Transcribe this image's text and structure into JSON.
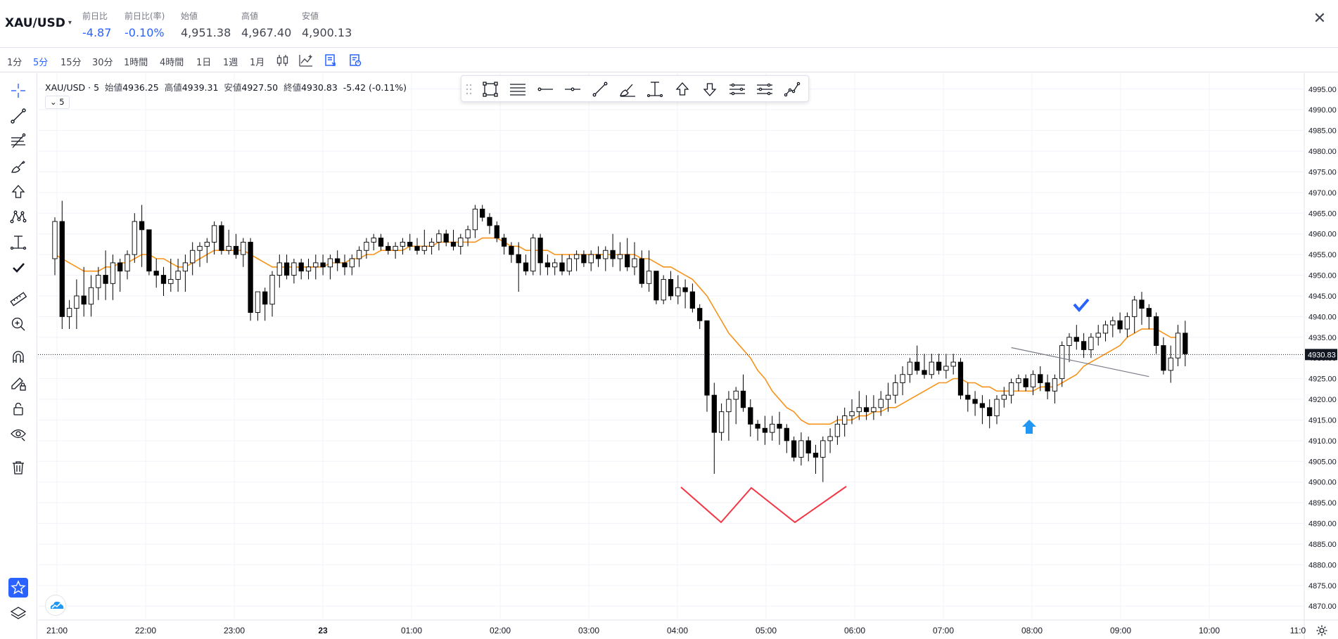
{
  "header": {
    "symbol": "XAU/USD",
    "stats": [
      {
        "label": "前日比",
        "value": "-4.87",
        "negative": true
      },
      {
        "label": "前日比(率)",
        "value": "-0.10%",
        "negative": true
      },
      {
        "label": "始値",
        "value": "4,951.38",
        "negative": false
      },
      {
        "label": "高値",
        "value": "4,967.40",
        "negative": false
      },
      {
        "label": "安値",
        "value": "4,900.13",
        "negative": false
      }
    ],
    "close_icon": "close-icon"
  },
  "timeframes": [
    "1分",
    "5分",
    "15分",
    "30分",
    "1時間",
    "4時間",
    "1日",
    "1週",
    "1月"
  ],
  "active_timeframe": "5分",
  "toolbar_icons": [
    "candle-type-icon",
    "indicators-icon",
    "template-icon",
    "snapshot-icon"
  ],
  "left_tools": [
    "crosshair-icon",
    "trendline-icon",
    "fib-icon",
    "brush-icon",
    "arrow-up-icon",
    "pattern-icon",
    "measure-text-icon",
    "check-icon",
    "ruler-icon",
    "zoom-in-icon",
    "magnet-icon",
    "lock-drawing-icon",
    "lock-icon",
    "eye-icon",
    "trash-icon",
    "star-icon",
    "layers-icon"
  ],
  "legend": {
    "symbol": "XAU/USD",
    "interval": "5",
    "open_label": "始値",
    "open": "4936.25",
    "high_label": "高値",
    "high": "4939.31",
    "low_label": "安値",
    "low": "4927.50",
    "close_label": "終値",
    "close": "4930.83",
    "change": "-5.42 (-0.11%)",
    "sub": "5"
  },
  "float_toolbar": [
    "rectangle-icon",
    "fib-lines-icon",
    "horizontal-ray-icon",
    "horizontal-line-icon",
    "trend-line-icon",
    "brush-icon",
    "price-range-icon",
    "arrow-up-icon",
    "arrow-down-icon",
    "parallel-channel-icon",
    "regression-icon",
    "path-icon"
  ],
  "chart_data": {
    "type": "candlestick",
    "symbol": "XAU/USD",
    "interval": "5",
    "y_ticks": [
      "4995.00",
      "4990.00",
      "4985.00",
      "4980.00",
      "4975.00",
      "4970.00",
      "4965.00",
      "4960.00",
      "4955.00",
      "4950.00",
      "4945.00",
      "4940.00",
      "4935.00",
      "4930.00",
      "4925.00",
      "4920.00",
      "4915.00",
      "4910.00",
      "4905.00",
      "4900.00",
      "4895.00",
      "4890.00",
      "4885.00",
      "4880.00",
      "4875.00",
      "4870.00"
    ],
    "ylim": [
      4868,
      4997
    ],
    "x_ticks": [
      "21:00",
      "22:00",
      "23:00",
      "23",
      "01:00",
      "02:00",
      "03:00",
      "04:00",
      "05:00",
      "06:00",
      "07:00",
      "08:00",
      "09:00",
      "10:00",
      "11:0"
    ],
    "current_price": "4930.83",
    "current_price_value": 4930.83,
    "up_color": "#ffffff",
    "down_color": "#000000",
    "ma_color": "#f7931a",
    "candles": [
      [
        4954,
        4964,
        4950,
        4963
      ],
      [
        4963,
        4968,
        4937,
        4940
      ],
      [
        4940,
        4944,
        4937,
        4942
      ],
      [
        4942,
        4949,
        4937,
        4945
      ],
      [
        4945,
        4952,
        4940,
        4943
      ],
      [
        4943,
        4950,
        4940,
        4947
      ],
      [
        4947,
        4952,
        4944,
        4950
      ],
      [
        4950,
        4956,
        4944,
        4948
      ],
      [
        4948,
        4955,
        4944,
        4953
      ],
      [
        4953,
        4954,
        4946,
        4951
      ],
      [
        4951,
        4956,
        4949,
        4955
      ],
      [
        4955,
        4965,
        4953,
        4963
      ],
      [
        4963,
        4967,
        4952,
        4961
      ],
      [
        4961,
        4961,
        4950,
        4951
      ],
      [
        4951,
        4954,
        4947,
        4950
      ],
      [
        4950,
        4952,
        4945,
        4948
      ],
      [
        4948,
        4954,
        4946,
        4949
      ],
      [
        4949,
        4954,
        4946,
        4951
      ],
      [
        4951,
        4955,
        4946,
        4953
      ],
      [
        4953,
        4958,
        4950,
        4956
      ],
      [
        4956,
        4958,
        4952,
        4957
      ],
      [
        4957,
        4959,
        4953,
        4958
      ],
      [
        4958,
        4963,
        4955,
        4962
      ],
      [
        4962,
        4963,
        4955,
        4956
      ],
      [
        4956,
        4961,
        4955,
        4957
      ],
      [
        4957,
        4960,
        4954,
        4955
      ],
      [
        4955,
        4959,
        4952,
        4958
      ],
      [
        4958,
        4959,
        4939,
        4941
      ],
      [
        4941,
        4946,
        4939,
        4946
      ],
      [
        4946,
        4947,
        4939,
        4943
      ],
      [
        4943,
        4951,
        4940,
        4950
      ],
      [
        4950,
        4955,
        4947,
        4953
      ],
      [
        4953,
        4955,
        4949,
        4950
      ],
      [
        4950,
        4954,
        4948,
        4953
      ],
      [
        4953,
        4954,
        4949,
        4951
      ],
      [
        4951,
        4954,
        4949,
        4952
      ],
      [
        4952,
        4955,
        4949,
        4953
      ],
      [
        4953,
        4955,
        4950,
        4952
      ],
      [
        4952,
        4955,
        4949,
        4954
      ],
      [
        4954,
        4956,
        4951,
        4953
      ],
      [
        4953,
        4955,
        4950,
        4952
      ],
      [
        4952,
        4955,
        4950,
        4954
      ],
      [
        4954,
        4957,
        4952,
        4956
      ],
      [
        4956,
        4959,
        4954,
        4958
      ],
      [
        4958,
        4960,
        4956,
        4959
      ],
      [
        4959,
        4960,
        4956,
        4957
      ],
      [
        4957,
        4958,
        4955,
        4956
      ],
      [
        4956,
        4958,
        4954,
        4957
      ],
      [
        4957,
        4959,
        4955,
        4958
      ],
      [
        4958,
        4960,
        4956,
        4957
      ],
      [
        4957,
        4959,
        4955,
        4956
      ],
      [
        4956,
        4961,
        4955,
        4957
      ],
      [
        4957,
        4959,
        4955,
        4958
      ],
      [
        4958,
        4961,
        4956,
        4960
      ],
      [
        4960,
        4961,
        4957,
        4958
      ],
      [
        4958,
        4961,
        4956,
        4957
      ],
      [
        4957,
        4960,
        4955,
        4959
      ],
      [
        4959,
        4962,
        4957,
        4961
      ],
      [
        4961,
        4967,
        4959,
        4966
      ],
      [
        4966,
        4967,
        4963,
        4964
      ],
      [
        4964,
        4965,
        4960,
        4962
      ],
      [
        4962,
        4963,
        4958,
        4959
      ],
      [
        4959,
        4960,
        4955,
        4957
      ],
      [
        4957,
        4958,
        4953,
        4955
      ],
      [
        4955,
        4958,
        4946,
        4953
      ],
      [
        4953,
        4955,
        4950,
        4951
      ],
      [
        4951,
        4960,
        4950,
        4959
      ],
      [
        4959,
        4960,
        4950,
        4953
      ],
      [
        4953,
        4955,
        4950,
        4952
      ],
      [
        4952,
        4954,
        4950,
        4953
      ],
      [
        4953,
        4955,
        4950,
        4951
      ],
      [
        4951,
        4955,
        4950,
        4954
      ],
      [
        4954,
        4956,
        4951,
        4955
      ],
      [
        4955,
        4956,
        4952,
        4953
      ],
      [
        4953,
        4956,
        4951,
        4955
      ],
      [
        4955,
        4957,
        4952,
        4954
      ],
      [
        4954,
        4957,
        4951,
        4956
      ],
      [
        4956,
        4960,
        4952,
        4954
      ],
      [
        4954,
        4958,
        4951,
        4955
      ],
      [
        4955,
        4959,
        4951,
        4952
      ],
      [
        4952,
        4958,
        4950,
        4954
      ],
      [
        4954,
        4956,
        4947,
        4948
      ],
      [
        4948,
        4956,
        4946,
        4951
      ],
      [
        4951,
        4951,
        4943,
        4944
      ],
      [
        4944,
        4950,
        4943,
        4949
      ],
      [
        4949,
        4951,
        4944,
        4945
      ],
      [
        4945,
        4950,
        4943,
        4947
      ],
      [
        4947,
        4949,
        4942,
        4946
      ],
      [
        4946,
        4948,
        4941,
        4942
      ],
      [
        4942,
        4943,
        4937,
        4939
      ],
      [
        4939,
        4939,
        4917,
        4921
      ],
      [
        4921,
        4924,
        4902,
        4912
      ],
      [
        4912,
        4919,
        4910,
        4917
      ],
      [
        4917,
        4922,
        4910,
        4920
      ],
      [
        4920,
        4923,
        4914,
        4922
      ],
      [
        4922,
        4926,
        4917,
        4918
      ],
      [
        4918,
        4920,
        4911,
        4914
      ],
      [
        4914,
        4915,
        4910,
        4913
      ],
      [
        4913,
        4916,
        4909,
        4912
      ],
      [
        4912,
        4916,
        4910,
        4914
      ],
      [
        4914,
        4917,
        4909,
        4913
      ],
      [
        4913,
        4914,
        4907,
        4910
      ],
      [
        4910,
        4911,
        4905,
        4906
      ],
      [
        4906,
        4912,
        4904,
        4910
      ],
      [
        4910,
        4911,
        4905,
        4907
      ],
      [
        4907,
        4909,
        4902,
        4906
      ],
      [
        4906,
        4911,
        4900,
        4910
      ],
      [
        4910,
        4913,
        4907,
        4911
      ],
      [
        4911,
        4916,
        4909,
        4914
      ],
      [
        4914,
        4918,
        4911,
        4916
      ],
      [
        4916,
        4920,
        4914,
        4917
      ],
      [
        4917,
        4922,
        4915,
        4918
      ],
      [
        4918,
        4921,
        4915,
        4917
      ],
      [
        4917,
        4921,
        4915,
        4918
      ],
      [
        4918,
        4922,
        4916,
        4920
      ],
      [
        4920,
        4924,
        4917,
        4921
      ],
      [
        4921,
        4926,
        4919,
        4924
      ],
      [
        4924,
        4928,
        4921,
        4926
      ],
      [
        4926,
        4930,
        4924,
        4929
      ],
      [
        4929,
        4933,
        4926,
        4927
      ],
      [
        4927,
        4931,
        4925,
        4926
      ],
      [
        4926,
        4931,
        4925,
        4929
      ],
      [
        4929,
        4931,
        4926,
        4927
      ],
      [
        4927,
        4931,
        4925,
        4928
      ],
      [
        4928,
        4931,
        4926,
        4929
      ],
      [
        4929,
        4930,
        4920,
        4921
      ],
      [
        4921,
        4924,
        4917,
        4920
      ],
      [
        4920,
        4922,
        4916,
        4919
      ],
      [
        4919,
        4921,
        4914,
        4918
      ],
      [
        4918,
        4920,
        4913,
        4916
      ],
      [
        4916,
        4921,
        4914,
        4920
      ],
      [
        4920,
        4923,
        4918,
        4921
      ],
      [
        4921,
        4925,
        4919,
        4924
      ],
      [
        4924,
        4926,
        4922,
        4925
      ],
      [
        4925,
        4926,
        4922,
        4923
      ],
      [
        4923,
        4927,
        4921,
        4926
      ],
      [
        4926,
        4928,
        4922,
        4924
      ],
      [
        4924,
        4926,
        4920,
        4922
      ],
      [
        4922,
        4926,
        4919,
        4925
      ],
      [
        4925,
        4934,
        4923,
        4933
      ],
      [
        4933,
        4936,
        4929,
        4935
      ],
      [
        4935,
        4938,
        4932,
        4934
      ],
      [
        4934,
        4936,
        4930,
        4932
      ],
      [
        4932,
        4936,
        4930,
        4935
      ],
      [
        4935,
        4938,
        4933,
        4936
      ],
      [
        4936,
        4939,
        4934,
        4938
      ],
      [
        4938,
        4940,
        4935,
        4939
      ],
      [
        4939,
        4941,
        4936,
        4937
      ],
      [
        4937,
        4941,
        4935,
        4940
      ],
      [
        4940,
        4945,
        4936,
        4944
      ],
      [
        4944,
        4946,
        4938,
        4942
      ],
      [
        4942,
        4943,
        4937,
        4940
      ],
      [
        4940,
        4941,
        4931,
        4933
      ],
      [
        4933,
        4935,
        4926,
        4927
      ],
      [
        4927,
        4933,
        4924,
        4930
      ],
      [
        4930,
        4938,
        4928,
        4936
      ],
      [
        4936,
        4939,
        4928,
        4931
      ]
    ],
    "ma": [
      4955,
      4954,
      4953,
      4952,
      4951,
      4951,
      4951,
      4952,
      4952,
      4953,
      4953,
      4954,
      4955,
      4955,
      4954,
      4954,
      4953,
      4952,
      4952,
      4953,
      4954,
      4955,
      4956,
      4956,
      4956,
      4956,
      4956,
      4955,
      4954,
      4953,
      4952,
      4952,
      4952,
      4952,
      4952,
      4952,
      4952,
      4952,
      4953,
      4953,
      4953,
      4954,
      4954,
      4955,
      4955,
      4956,
      4956,
      4956,
      4956,
      4957,
      4957,
      4957,
      4957,
      4958,
      4958,
      4958,
      4958,
      4958,
      4958,
      4959,
      4959,
      4959,
      4958,
      4957,
      4957,
      4956,
      4956,
      4956,
      4956,
      4955,
      4955,
      4955,
      4955,
      4955,
      4955,
      4955,
      4955,
      4955,
      4955,
      4955,
      4955,
      4954,
      4954,
      4953,
      4952,
      4952,
      4951,
      4950,
      4949,
      4947,
      4945,
      4942,
      4939,
      4936,
      4934,
      4932,
      4930,
      4927,
      4925,
      4922,
      4920,
      4918,
      4917,
      4915,
      4914,
      4914,
      4914,
      4914,
      4915,
      4915,
      4915,
      4916,
      4916,
      4917,
      4917,
      4918,
      4918,
      4919,
      4920,
      4921,
      4922,
      4923,
      4924,
      4924,
      4925,
      4925,
      4924,
      4924,
      4923,
      4923,
      4922,
      4922,
      4922,
      4922,
      4922,
      4922,
      4923,
      4923,
      4923,
      4924,
      4925,
      4926,
      4928,
      4929,
      4930,
      4931,
      4932,
      4933,
      4935,
      4936,
      4937,
      4937,
      4937,
      4936,
      4935,
      4935
    ],
    "trendline": {
      "from": [
        4932.5,
        132
      ],
      "to": [
        4925.5,
        151
      ]
    },
    "annotations": {
      "w_pattern": "red zigzag",
      "arrow_up_color": "#2196f3",
      "check_color": "#2962ff"
    }
  }
}
